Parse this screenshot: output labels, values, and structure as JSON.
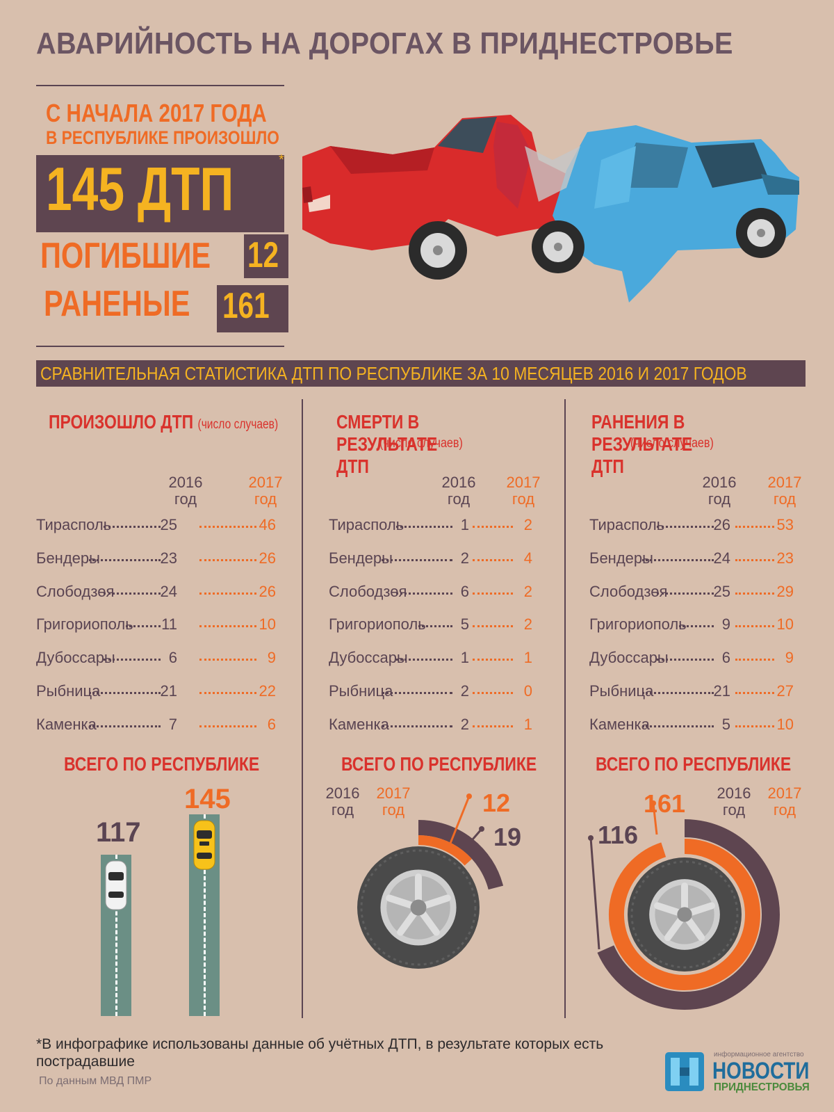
{
  "title": "АВАРИЙНОСТЬ НА ДОРОГАХ В ПРИДНЕСТРОВЬЕ",
  "hero": {
    "line1": "С НАЧАЛА 2017 ГОДА",
    "line2": "В РЕСПУБЛИКЕ ПРОИЗОШЛО",
    "accidents": "145 ДТП",
    "asterisk": "*",
    "dead_label": "ПОГИБШИЕ",
    "dead_value": "12",
    "injured_label": "РАНЕНЫЕ",
    "injured_value": "161"
  },
  "banner": "СРАВНИТЕЛЬНАЯ СТАТИСТИКА ДТП ПО РЕСПУБЛИКЕ ЗА 10 МЕСЯЦЕВ 2016 И 2017 ГОДОВ",
  "year_a": [
    "2016",
    "год"
  ],
  "year_b": [
    "2017",
    "год"
  ],
  "total_title": "ВСЕГО ПО РЕСПУБЛИКЕ",
  "colors": {
    "background": "#d8bfad",
    "plum": "#5e4550",
    "orange": "#ef6b25",
    "red": "#d9322c",
    "yellow": "#f5b321",
    "road": "#6b8f85"
  },
  "chart_data": [
    {
      "type": "table",
      "title": "ПРОИЗОШЛО ДТП",
      "subtitle": "(число случаев)",
      "columns": [
        "2016 год",
        "2017 год"
      ],
      "rows": [
        {
          "city": "Тирасполь",
          "v2016": "25",
          "v2017": "46"
        },
        {
          "city": "Бендеры",
          "v2016": "23",
          "v2017": "26"
        },
        {
          "city": "Слободзея",
          "v2016": "24",
          "v2017": "26"
        },
        {
          "city": "Григориополь",
          "v2016": "11",
          "v2017": "10"
        },
        {
          "city": "Дубоссары",
          "v2016": "6",
          "v2017": "9"
        },
        {
          "city": "Рыбница",
          "v2016": "21",
          "v2017": "22"
        },
        {
          "city": "Каменка",
          "v2016": "7",
          "v2017": "6"
        }
      ],
      "total": {
        "v2016": "117",
        "v2017": "145"
      }
    },
    {
      "type": "table",
      "title": "СМЕРТИ В РЕЗУЛЬТАТЕ ДТП",
      "subtitle": "(число случаев)",
      "columns": [
        "2016 год",
        "2017 год"
      ],
      "rows": [
        {
          "city": "Тирасполь",
          "v2016": "1",
          "v2017": "2"
        },
        {
          "city": "Бендеры",
          "v2016": "2",
          "v2017": "4"
        },
        {
          "city": "Слободзея",
          "v2016": "6",
          "v2017": "2"
        },
        {
          "city": "Григориополь",
          "v2016": "5",
          "v2017": "2"
        },
        {
          "city": "Дубоссары",
          "v2016": "1",
          "v2017": "1"
        },
        {
          "city": "Рыбница",
          "v2016": "2",
          "v2017": "0"
        },
        {
          "city": "Каменка",
          "v2016": "2",
          "v2017": "1"
        }
      ],
      "total": {
        "v2016": "19",
        "v2017": "12"
      }
    },
    {
      "type": "table",
      "title": "РАНЕНИЯ В РЕЗУЛЬТАТЕ ДТП",
      "subtitle": "(число случаев)",
      "columns": [
        "2016 год",
        "2017 год"
      ],
      "rows": [
        {
          "city": "Тирасполь",
          "v2016": "26",
          "v2017": "53"
        },
        {
          "city": "Бендеры",
          "v2016": "24",
          "v2017": "23"
        },
        {
          "city": "Слободзея",
          "v2016": "25",
          "v2017": "29"
        },
        {
          "city": "Григориополь",
          "v2016": "9",
          "v2017": "10"
        },
        {
          "city": "Дубоссары",
          "v2016": "6",
          "v2017": "9"
        },
        {
          "city": "Рыбница",
          "v2016": "21",
          "v2017": "27"
        },
        {
          "city": "Каменка",
          "v2016": "5",
          "v2017": "10"
        }
      ],
      "total": {
        "v2016": "116",
        "v2017": "161"
      }
    }
  ],
  "footnote": "*В инфографике использованы данные об учётных ДТП, в результате которых есть пострадавшие",
  "source": "По данным МВД ПМР",
  "logo": {
    "small": "информационное агентство",
    "line1": "НОВОСТИ",
    "line2": "ПРИДНЕСТРОВЬЯ"
  }
}
